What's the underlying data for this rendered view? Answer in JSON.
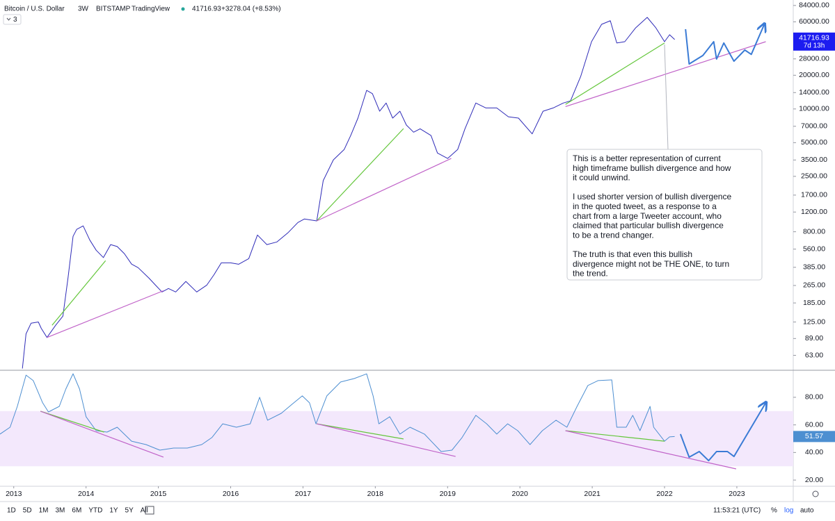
{
  "header": {
    "symbol": "Bitcoin / U.S. Dollar",
    "interval": "3W",
    "exchange": "BITSTAMP",
    "source": "TradingView",
    "last": "41716.93",
    "change": "+3278.04 (+8.53%)",
    "study_count": "3"
  },
  "toolbar": {
    "intervals": [
      "1D",
      "5D",
      "1M",
      "3M",
      "6M",
      "YTD",
      "1Y",
      "5Y",
      "All"
    ],
    "clock": "11:53:21 (UTC)",
    "options": [
      "%",
      "log",
      "auto"
    ]
  },
  "chart_data": [
    {
      "type": "line",
      "log_scale": true,
      "grid": false,
      "xlim": [
        2012.81,
        2023.78
      ],
      "ylim": [
        47,
        94000
      ],
      "yticks": [
        {
          "value": 63,
          "label": "63.00"
        },
        {
          "value": 89,
          "label": "89.00"
        },
        {
          "value": 125,
          "label": "125.00"
        },
        {
          "value": 185,
          "label": "185.00"
        },
        {
          "value": 265,
          "label": "265.00"
        },
        {
          "value": 385,
          "label": "385.00"
        },
        {
          "value": 560,
          "label": "560.00"
        },
        {
          "value": 800,
          "label": "800.00"
        },
        {
          "value": 1200,
          "label": "1200.00"
        },
        {
          "value": 1700,
          "label": "1700.00"
        },
        {
          "value": 2500,
          "label": "2500.00"
        },
        {
          "value": 3500,
          "label": "3500.00"
        },
        {
          "value": 5000,
          "label": "5000.00"
        },
        {
          "value": 7000,
          "label": "7000.00"
        },
        {
          "value": 10000,
          "label": "10000.00"
        },
        {
          "value": 14000,
          "label": "14000.00"
        },
        {
          "value": 20000,
          "label": "20000.00"
        },
        {
          "value": 28000,
          "label": "28000.00"
        },
        {
          "value": 60000,
          "label": "60000.00"
        },
        {
          "value": 84000,
          "label": "84000.00"
        }
      ],
      "x": [
        2013.12,
        2013.17,
        2013.24,
        2013.34,
        2013.38,
        2013.46,
        2013.58,
        2013.68,
        2013.75,
        2013.82,
        2013.87,
        2013.96,
        2014.05,
        2014.14,
        2014.24,
        2014.34,
        2014.43,
        2014.53,
        2014.63,
        2014.72,
        2014.87,
        2014.96,
        2015.05,
        2015.14,
        2015.24,
        2015.38,
        2015.53,
        2015.67,
        2015.77,
        2015.87,
        2016.0,
        2016.11,
        2016.25,
        2016.37,
        2016.5,
        2016.64,
        2016.79,
        2016.93,
        2017.02,
        2017.19,
        2017.28,
        2017.42,
        2017.57,
        2017.66,
        2017.76,
        2017.88,
        2017.96,
        2018.06,
        2018.15,
        2018.24,
        2018.34,
        2018.43,
        2018.53,
        2018.62,
        2018.77,
        2018.86,
        2019.0,
        2019.14,
        2019.24,
        2019.39,
        2019.53,
        2019.68,
        2019.84,
        2019.98,
        2020.17,
        2020.32,
        2020.46,
        2020.6,
        2020.7,
        2020.84,
        2020.99,
        2021.13,
        2021.25,
        2021.34,
        2021.45,
        2021.6,
        2021.76,
        2021.88,
        2022.0,
        2022.07,
        2022.14
      ],
      "series": [
        {
          "color": "#2e2bb8",
          "values": [
            48,
            98,
            122,
            125,
            110,
            91,
            117,
            141,
            308,
            728,
            840,
            902,
            677,
            547,
            470,
            614,
            590,
            510,
            411,
            382,
            308,
            267,
            232,
            249,
            232,
            288,
            232,
            267,
            331,
            422,
            422,
            410,
            460,
            748,
            614,
            649,
            781,
            968,
            1040,
            1000,
            2290,
            3510,
            4350,
            5790,
            8280,
            14650,
            13700,
            9550,
            11300,
            8280,
            9550,
            7180,
            6200,
            6650,
            5790,
            4040,
            3610,
            4350,
            6650,
            11300,
            10200,
            10200,
            8510,
            8280,
            5990,
            9550,
            10200,
            11300,
            11800,
            19500,
            39900,
            57000,
            61300,
            38800,
            39900,
            53000,
            65800,
            53000,
            39900,
            46000,
            41716.93
          ]
        }
      ],
      "trendlines": [
        {
          "color": "#63c63a",
          "x": [
            2013.53,
            2014.27
          ],
          "values": [
            117,
            441
          ]
        },
        {
          "color": "#c062c8",
          "x": [
            2013.46,
            2015.07
          ],
          "values": [
            91,
            238
          ]
        },
        {
          "color": "#63c63a",
          "x": [
            2017.19,
            2018.39
          ],
          "values": [
            1000,
            6680
          ]
        },
        {
          "color": "#c062c8",
          "x": [
            2017.19,
            2019.05
          ],
          "values": [
            1000,
            3610
          ]
        },
        {
          "color": "#63c63a",
          "x": [
            2020.63,
            2022.0
          ],
          "values": [
            11000,
            38800
          ]
        },
        {
          "color": "#c062c8",
          "x": [
            2020.63,
            2023.4
          ],
          "values": [
            10500,
            39900
          ]
        }
      ],
      "projection": {
        "color": "#3a7bd5",
        "x": [
          2022.29,
          2022.34,
          2022.53,
          2022.68,
          2022.72,
          2022.82,
          2022.96,
          2023.11,
          2023.2,
          2023.38
        ],
        "values": [
          51600,
          25200,
          30000,
          39900,
          27900,
          38800,
          26700,
          33600,
          30700,
          57000
        ]
      },
      "last_value_label": "41716.93",
      "countdown": "7d 13h",
      "annotation": [
        [
          "This is a better representation of current",
          "high timeframe bullish divergence and how",
          "it could unwind."
        ],
        [
          "I used shorter version of bullish divergence",
          "in the quoted tweet, as a response to a",
          "chart from a large Tweeter account, who",
          "claimed that particular bullish divergence",
          "to be a trend changer."
        ],
        [
          "The truth is that even this bullish",
          "divergence might not be THE ONE, to turn",
          "the trend."
        ]
      ]
    },
    {
      "type": "line",
      "log_scale": false,
      "grid": false,
      "xlim": [
        2012.81,
        2023.78
      ],
      "ylim": [
        15.5,
        98.6
      ],
      "xticks": [
        2013,
        2014,
        2015,
        2016,
        2017,
        2018,
        2019,
        2020,
        2021,
        2022,
        2023
      ],
      "yticks": [
        {
          "value": 20,
          "label": "20.00"
        },
        {
          "value": 40,
          "label": "40.00"
        },
        {
          "value": 60,
          "label": "60.00"
        },
        {
          "value": 80,
          "label": "80.00"
        }
      ],
      "band": [
        30,
        70
      ],
      "band_color": "#f3e8fc",
      "x": [
        2012.81,
        2012.95,
        2013.05,
        2013.17,
        2013.27,
        2013.4,
        2013.48,
        2013.63,
        2013.72,
        2013.82,
        2013.91,
        2014.0,
        2014.14,
        2014.29,
        2014.43,
        2014.63,
        2014.83,
        2015.02,
        2015.21,
        2015.4,
        2015.6,
        2015.74,
        2015.89,
        2016.08,
        2016.27,
        2016.4,
        2016.51,
        2016.7,
        2016.85,
        2016.99,
        2017.09,
        2017.18,
        2017.33,
        2017.52,
        2017.71,
        2017.88,
        2017.97,
        2018.05,
        2018.2,
        2018.34,
        2018.48,
        2018.68,
        2018.91,
        2019.06,
        2019.2,
        2019.39,
        2019.54,
        2019.68,
        2019.83,
        2019.97,
        2020.14,
        2020.31,
        2020.5,
        2020.65,
        2020.79,
        2020.94,
        2021.08,
        2021.27,
        2021.34,
        2021.47,
        2021.56,
        2021.66,
        2021.8,
        2021.85,
        2022.0,
        2022.07,
        2022.14
      ],
      "series": [
        {
          "color": "#4d8fd1",
          "values": [
            53.3,
            58.3,
            73.4,
            96.1,
            92.1,
            76,
            69.4,
            73.4,
            86,
            97.1,
            86,
            65.9,
            55.8,
            54.8,
            58.3,
            48.2,
            45.7,
            41.7,
            43.2,
            43.2,
            45.7,
            50.8,
            60.8,
            58.3,
            60.8,
            80,
            63.4,
            68.4,
            75,
            81,
            76,
            60.8,
            81,
            91.1,
            93.6,
            97,
            81,
            60.8,
            65.9,
            53.3,
            58.3,
            53.3,
            40.7,
            41.7,
            50.8,
            66.9,
            60.8,
            53.3,
            60.8,
            55.8,
            45.7,
            55.8,
            63.4,
            58.3,
            73.4,
            88.6,
            92.1,
            92.6,
            58.3,
            58.3,
            66.9,
            55.8,
            73.4,
            58.3,
            48.2,
            51.3,
            51.57
          ]
        }
      ],
      "trendlines": [
        {
          "color": "#63c63a",
          "x": [
            2013.37,
            2014.25
          ],
          "values": [
            69.9,
            54.8
          ]
        },
        {
          "color": "#c062c8",
          "x": [
            2013.37,
            2015.07
          ],
          "values": [
            69.9,
            36.6
          ]
        },
        {
          "color": "#63c63a",
          "x": [
            2017.19,
            2018.39
          ],
          "values": [
            60.8,
            49.8
          ]
        },
        {
          "color": "#c062c8",
          "x": [
            2017.19,
            2019.11
          ],
          "values": [
            60.8,
            37.1
          ]
        },
        {
          "color": "#63c63a",
          "x": [
            2020.63,
            2022.0
          ],
          "values": [
            55.8,
            48.2
          ]
        },
        {
          "color": "#c062c8",
          "x": [
            2020.63,
            2022.99
          ],
          "values": [
            55.8,
            28.1
          ]
        }
      ],
      "projection": {
        "color": "#3a7bd5",
        "x": [
          2022.22,
          2022.34,
          2022.48,
          2022.61,
          2022.72,
          2022.87,
          2022.96,
          2023.4
        ],
        "values": [
          53.3,
          36.6,
          40.7,
          34.1,
          40.7,
          40.7,
          37.1,
          76
        ]
      },
      "last_value_label": "51.57"
    }
  ]
}
